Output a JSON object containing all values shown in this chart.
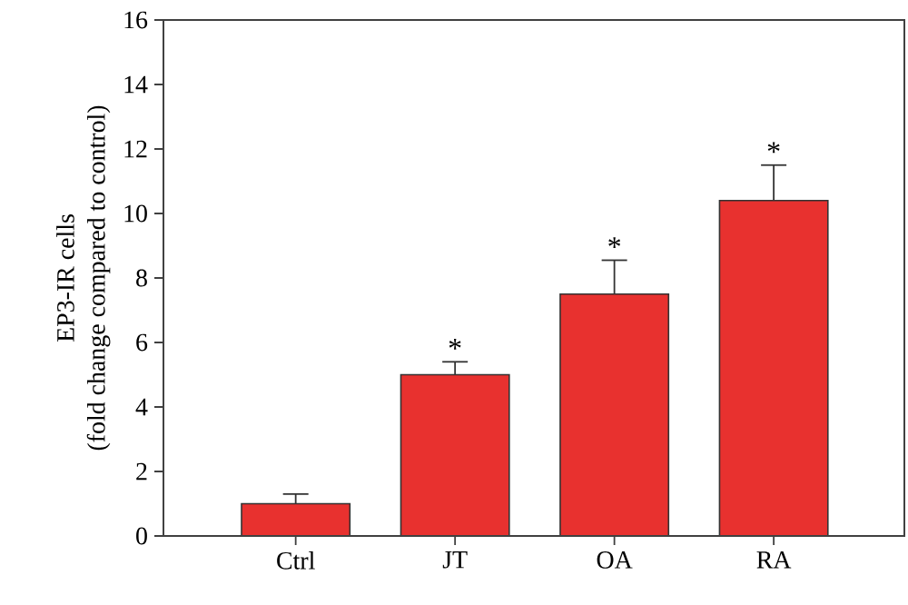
{
  "chart_data": {
    "type": "bar",
    "ylabel": [
      "EP3-IR cells",
      "(fold change compared to control)"
    ],
    "categories": [
      "Ctrl",
      "JT",
      "OA",
      "RA"
    ],
    "values": [
      1.0,
      5.0,
      7.5,
      10.4
    ],
    "errors": [
      [
        1.0,
        1.3
      ],
      [
        5.0,
        5.4
      ],
      [
        7.5,
        8.55
      ],
      [
        10.4,
        11.5
      ]
    ],
    "colors": [
      "#e8312f",
      "#e8312f",
      "#e8312f",
      "#e8312f"
    ],
    "ylim": [
      0,
      16
    ],
    "yticks": [
      0,
      2,
      4,
      6,
      8,
      10,
      12,
      14,
      16
    ],
    "annotations": [
      "*",
      "*",
      "*"
    ]
  }
}
